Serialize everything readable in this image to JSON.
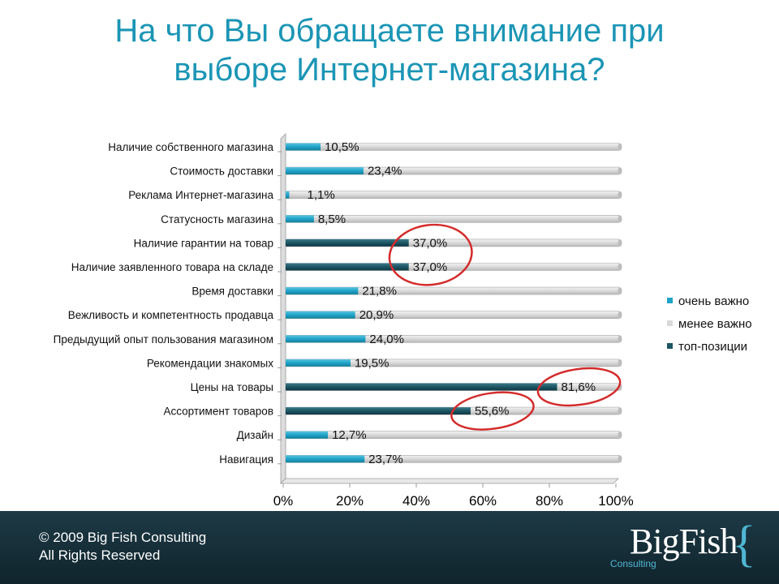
{
  "title": {
    "line1": "На что Вы обращаете внимание при",
    "line2": "выборе Интернет-магазина?"
  },
  "chart_data": {
    "type": "bar",
    "orientation": "horizontal",
    "stacked_percent": true,
    "categories": [
      "Наличие собственного магазина",
      "Стоимость доставки",
      "Реклама Интернет-магазина",
      "Статусность магазина",
      "Наличие гарантии на товар",
      "Наличие заявленного товара на складе",
      "Время доставки",
      "Вежливость и компетентность продавца",
      "Предыдущий опыт пользования магазином",
      "Рекомендации знакомых",
      "Цены на товары",
      "Ассортимент товаров",
      "Дизайн",
      "Навигация"
    ],
    "values": [
      10.5,
      23.4,
      1.1,
      8.5,
      37.0,
      37.0,
      21.8,
      20.9,
      24.0,
      19.5,
      81.6,
      55.6,
      12.7,
      23.7
    ],
    "value_labels": [
      "10,5%",
      "23,4%",
      "1,1%",
      "8,5%",
      "37,0%",
      "37,0%",
      "21,8%",
      "20,9%",
      "24,0%",
      "19,5%",
      "81,6%",
      "55,6%",
      "12,7%",
      "23,7%"
    ],
    "top_positions": [
      false,
      false,
      false,
      false,
      true,
      true,
      false,
      false,
      false,
      false,
      true,
      true,
      false,
      false
    ],
    "circled": [
      false,
      false,
      false,
      false,
      true,
      true,
      false,
      false,
      false,
      false,
      true,
      true,
      false,
      false
    ],
    "series": [
      {
        "name": "очень важно",
        "color": "#1fa3c8"
      },
      {
        "name": "менее важно",
        "color": "#d9d9d9"
      },
      {
        "name": "топ-позиции",
        "color": "#1c5563"
      }
    ],
    "xlim": [
      0,
      100
    ],
    "xticks": [
      "0%",
      "20%",
      "40%",
      "60%",
      "80%",
      "100%"
    ],
    "legend_position": "right",
    "annotation_color": "#d42c2c"
  },
  "footer": {
    "copyright": "© 2009 Big Fish Consulting",
    "rights": "All Rights Reserved"
  },
  "logo": {
    "name": "BigFish",
    "sub": "Consulting",
    "brace": "{"
  }
}
